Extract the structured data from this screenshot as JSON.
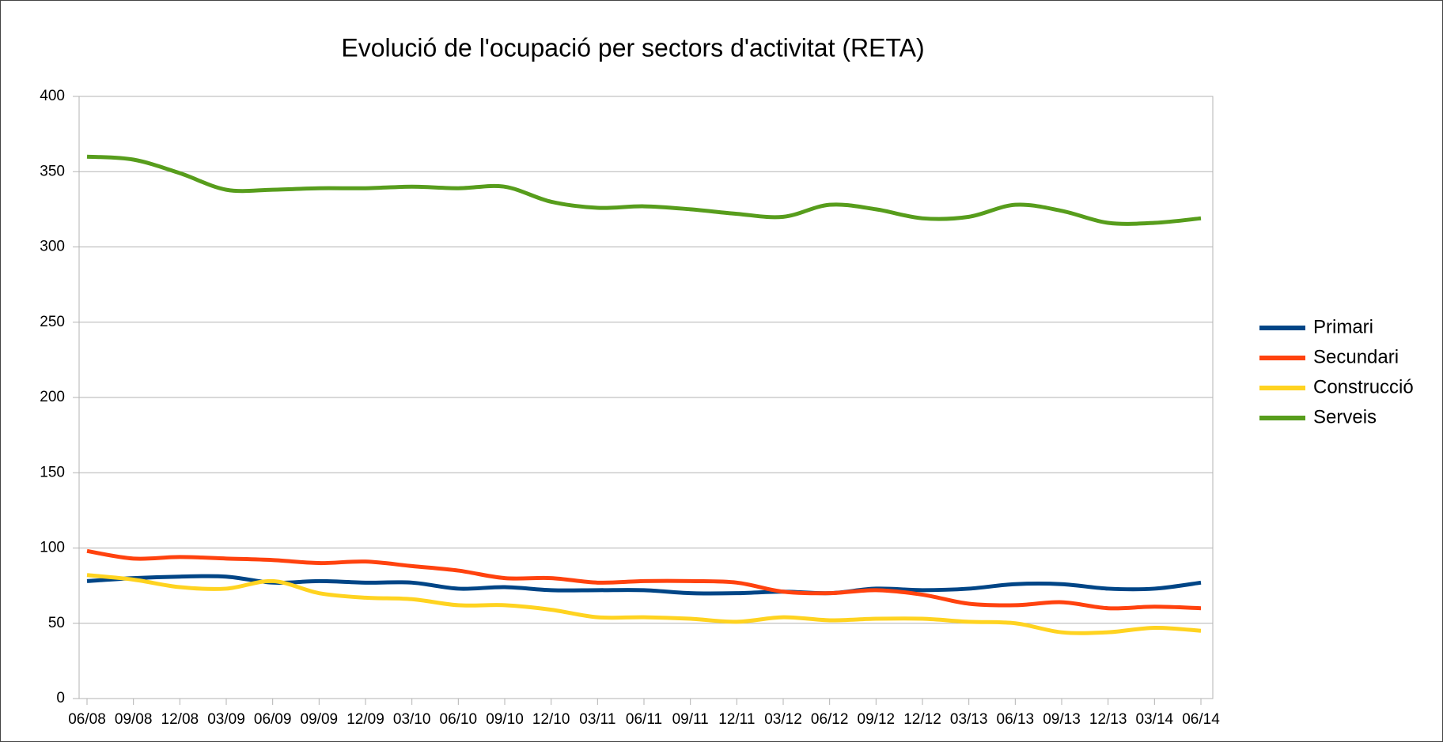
{
  "chart_data": {
    "type": "line",
    "title": "Evolució de l'ocupació per sectors d'activitat (RETA)",
    "categories": [
      "06/08",
      "09/08",
      "12/08",
      "03/09",
      "06/09",
      "09/09",
      "12/09",
      "03/10",
      "06/10",
      "09/10",
      "12/10",
      "03/11",
      "06/11",
      "09/11",
      "12/11",
      "03/12",
      "06/12",
      "09/12",
      "12/12",
      "03/13",
      "06/13",
      "09/13",
      "12/13",
      "03/14",
      "06/14"
    ],
    "series": [
      {
        "name": "Primari",
        "color": "#004586",
        "values": [
          78,
          80,
          81,
          81,
          77,
          78,
          77,
          77,
          73,
          74,
          72,
          72,
          72,
          70,
          70,
          71,
          70,
          73,
          72,
          73,
          76,
          76,
          73,
          73,
          77
        ]
      },
      {
        "name": "Secundari",
        "color": "#ff420e",
        "values": [
          98,
          93,
          94,
          93,
          92,
          90,
          91,
          88,
          85,
          80,
          80,
          77,
          78,
          78,
          77,
          71,
          70,
          72,
          69,
          63,
          62,
          64,
          60,
          61,
          60
        ]
      },
      {
        "name": "Construcció",
        "color": "#ffd320",
        "values": [
          82,
          79,
          74,
          73,
          78,
          70,
          67,
          66,
          62,
          62,
          59,
          54,
          54,
          53,
          51,
          54,
          52,
          53,
          53,
          51,
          50,
          44,
          44,
          47,
          45
        ]
      },
      {
        "name": "Serveis",
        "color": "#579d1c",
        "values": [
          360,
          358,
          349,
          338,
          338,
          339,
          339,
          340,
          339,
          340,
          330,
          326,
          327,
          325,
          322,
          320,
          328,
          325,
          319,
          320,
          328,
          324,
          316,
          316,
          319
        ]
      }
    ],
    "ylim": [
      0,
      400
    ],
    "yticks": [
      0,
      50,
      100,
      150,
      200,
      250,
      300,
      350,
      400
    ],
    "grid": true,
    "legend": "right"
  }
}
